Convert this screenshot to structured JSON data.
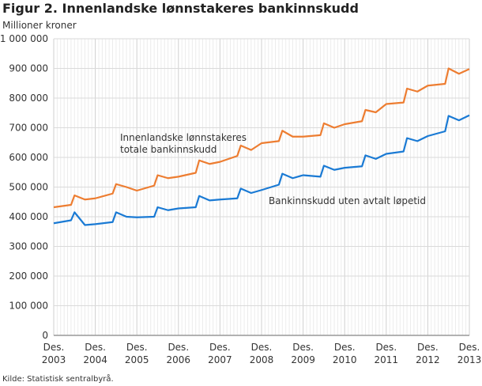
{
  "title": "Figur 2. Innenlandske lønnstakeres bankinnskudd",
  "source": "Kilde: Statistisk sentralbyrå.",
  "chart_data": {
    "type": "line",
    "title": "Figur 2. Innenlandske lønnstakeres bankinnskudd",
    "ylabel": "Millioner kroner",
    "ylim": [
      0,
      1000000
    ],
    "yticks": [
      0,
      100000,
      200000,
      300000,
      400000,
      500000,
      600000,
      700000,
      800000,
      900000,
      1000000
    ],
    "ytick_labels": [
      "0",
      "100 000",
      "200 000",
      "300 000",
      "400 000",
      "500 000",
      "600 000",
      "700 000",
      "800 000",
      "900 000",
      "1 000 000"
    ],
    "xlim": [
      "2003-12",
      "2013-12"
    ],
    "xtick_labels": [
      [
        "Des.",
        "2003"
      ],
      [
        "Des.",
        "2004"
      ],
      [
        "Des.",
        "2005"
      ],
      [
        "Des.",
        "2006"
      ],
      [
        "Des.",
        "2007"
      ],
      [
        "Des.",
        "2008"
      ],
      [
        "Des.",
        "2009"
      ],
      [
        "Des.",
        "2010"
      ],
      [
        "Des.",
        "2011"
      ],
      [
        "Des.",
        "2012"
      ],
      [
        "Des.",
        "2013"
      ]
    ],
    "grid": true,
    "series": [
      {
        "name": "Innenlandske lønnstakeres totale bankinnskudd",
        "label_lines": [
          "Innenlandske lønnstakeres",
          "totale bankinnskudd"
        ],
        "color": "#ed7d31",
        "x": [
          "2003-12",
          "2004-05",
          "2004-06",
          "2004-09",
          "2004-12",
          "2005-05",
          "2005-06",
          "2005-09",
          "2005-12",
          "2006-05",
          "2006-06",
          "2006-09",
          "2006-12",
          "2007-05",
          "2007-06",
          "2007-09",
          "2007-12",
          "2008-05",
          "2008-06",
          "2008-09",
          "2008-12",
          "2009-05",
          "2009-06",
          "2009-09",
          "2009-12",
          "2010-05",
          "2010-06",
          "2010-09",
          "2010-12",
          "2011-05",
          "2011-06",
          "2011-09",
          "2011-12",
          "2012-05",
          "2012-06",
          "2012-09",
          "2012-12",
          "2013-05",
          "2013-06",
          "2013-09",
          "2013-12"
        ],
        "values": [
          432000,
          440000,
          472000,
          458000,
          462000,
          478000,
          510000,
          500000,
          488000,
          505000,
          540000,
          530000,
          535000,
          548000,
          590000,
          578000,
          585000,
          605000,
          640000,
          625000,
          648000,
          655000,
          690000,
          670000,
          670000,
          675000,
          715000,
          700000,
          712000,
          722000,
          760000,
          752000,
          780000,
          785000,
          832000,
          822000,
          842000,
          848000,
          900000,
          882000,
          898000
        ]
      },
      {
        "name": "Bankinnskudd uten avtalt løpetid",
        "label_lines": [
          "Bankinnskudd uten avtalt løpetid"
        ],
        "color": "#1a7ad4",
        "x": [
          "2003-12",
          "2004-05",
          "2004-06",
          "2004-09",
          "2004-12",
          "2005-05",
          "2005-06",
          "2005-09",
          "2005-12",
          "2006-05",
          "2006-06",
          "2006-09",
          "2006-12",
          "2007-05",
          "2007-06",
          "2007-09",
          "2007-12",
          "2008-05",
          "2008-06",
          "2008-09",
          "2008-12",
          "2009-05",
          "2009-06",
          "2009-09",
          "2009-12",
          "2010-05",
          "2010-06",
          "2010-09",
          "2010-12",
          "2011-05",
          "2011-06",
          "2011-09",
          "2011-12",
          "2012-05",
          "2012-06",
          "2012-09",
          "2012-12",
          "2013-05",
          "2013-06",
          "2013-09",
          "2013-12"
        ],
        "values": [
          378000,
          388000,
          415000,
          372000,
          375000,
          382000,
          415000,
          400000,
          398000,
          400000,
          432000,
          422000,
          428000,
          432000,
          470000,
          455000,
          458000,
          462000,
          495000,
          480000,
          490000,
          508000,
          545000,
          530000,
          540000,
          535000,
          572000,
          558000,
          565000,
          570000,
          607000,
          595000,
          612000,
          620000,
          665000,
          655000,
          672000,
          688000,
          740000,
          725000,
          742000
        ]
      }
    ]
  }
}
